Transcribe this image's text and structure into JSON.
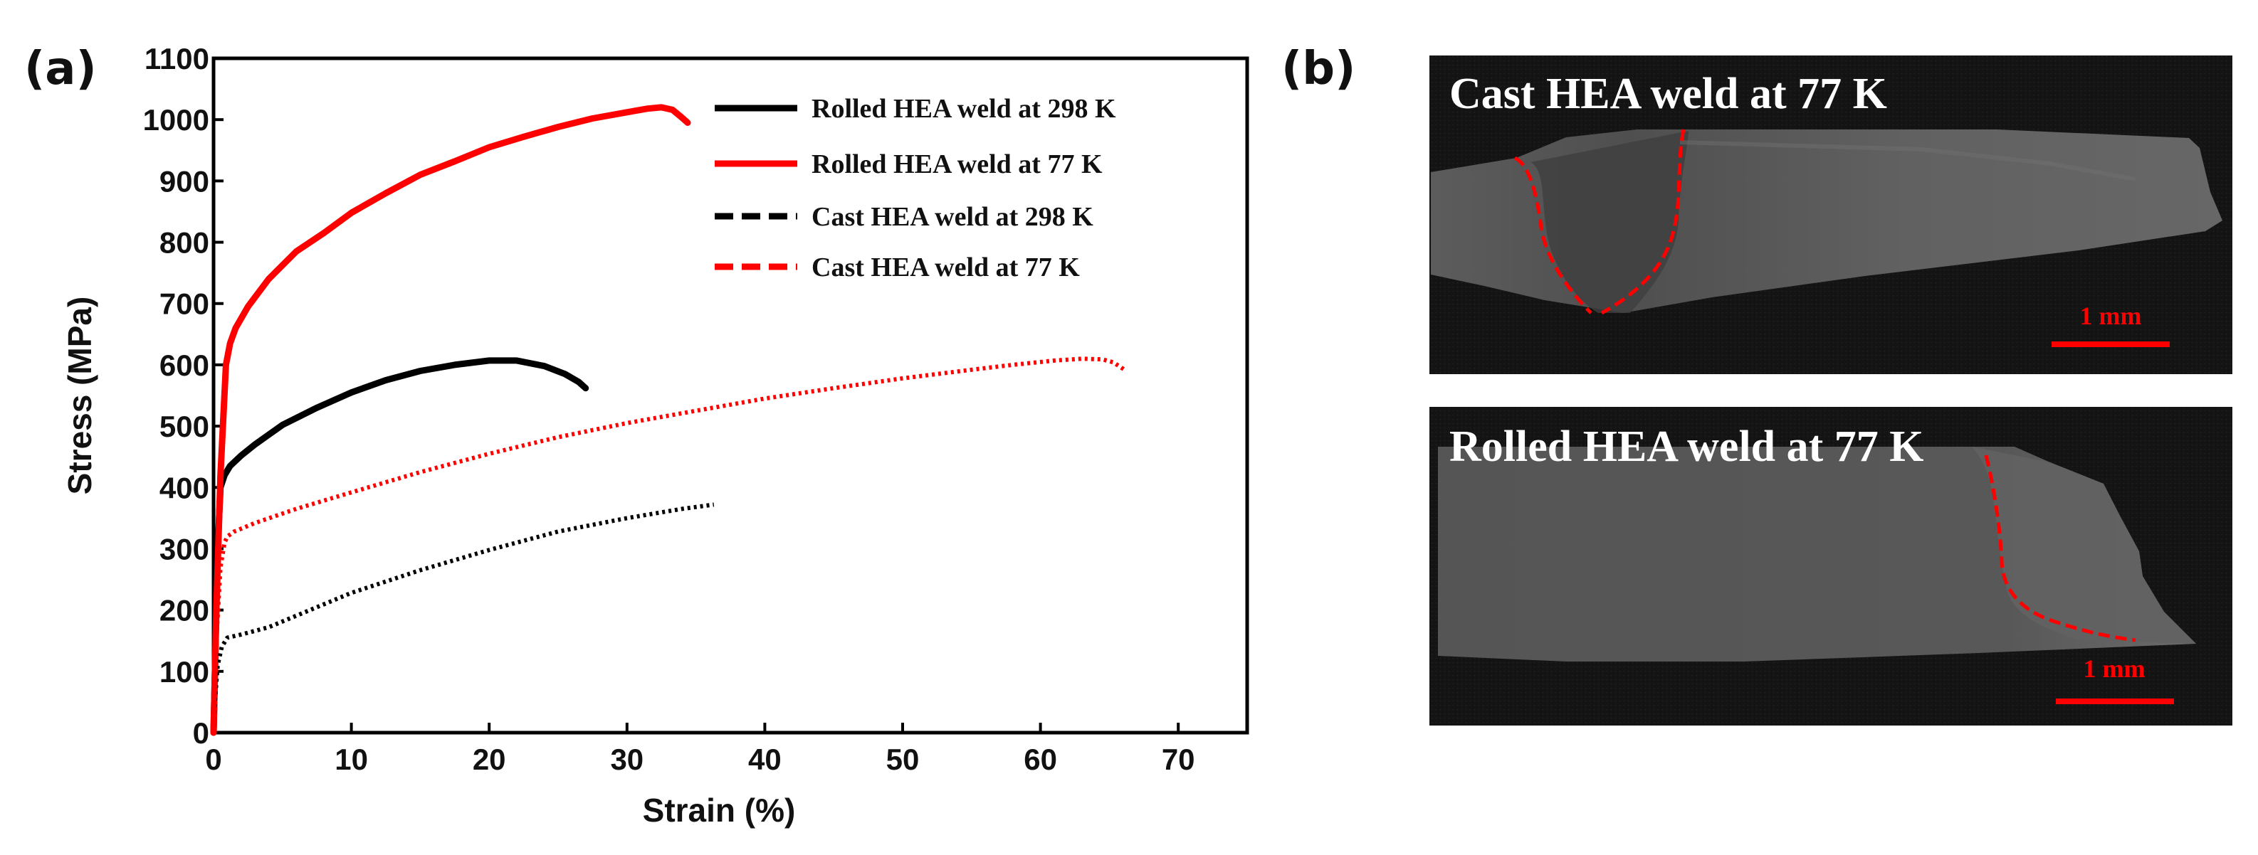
{
  "panel_a_label": "(a)",
  "panel_b_label": "(b)",
  "chart_data": {
    "type": "line",
    "title": "",
    "xlabel": "Strain (%)",
    "ylabel": "Stress (MPa)",
    "xlim": [
      0,
      75
    ],
    "ylim": [
      0,
      1100
    ],
    "xticks": [
      0,
      10,
      20,
      30,
      40,
      50,
      60,
      70
    ],
    "yticks": [
      0,
      100,
      200,
      300,
      400,
      500,
      600,
      700,
      800,
      900,
      1000,
      1100
    ],
    "legend_position": "top-right",
    "series": [
      {
        "name": "Rolled HEA weld at 298 K",
        "color": "#000000",
        "style": "solid",
        "x": [
          0,
          0.15,
          0.3,
          0.5,
          0.8,
          1.2,
          2,
          3,
          5,
          7.5,
          10,
          12.5,
          15,
          17.5,
          20,
          22,
          24,
          25.5,
          26.5,
          27
        ],
        "y": [
          0,
          150,
          300,
          400,
          420,
          435,
          452,
          470,
          502,
          530,
          555,
          575,
          590,
          600,
          607,
          607,
          598,
          585,
          572,
          562
        ]
      },
      {
        "name": "Rolled HEA weld at 77 K",
        "color": "#ff0000",
        "style": "solid",
        "x": [
          0,
          0.2,
          0.5,
          0.9,
          1.2,
          1.6,
          2.5,
          4,
          6,
          8,
          10,
          12.5,
          15,
          17.5,
          20,
          22.5,
          25,
          27.5,
          30,
          31.5,
          32.5,
          33.3,
          33.9,
          34.4
        ],
        "y": [
          0,
          200,
          420,
          600,
          635,
          660,
          695,
          740,
          785,
          815,
          848,
          880,
          910,
          932,
          955,
          972,
          988,
          1002,
          1012,
          1018,
          1020,
          1016,
          1005,
          995
        ]
      },
      {
        "name": "Cast HEA weld at 298 K",
        "color": "#000000",
        "style": "dashed",
        "x": [
          0,
          0.1,
          0.3,
          0.6,
          1,
          2,
          4,
          7,
          10,
          15,
          20,
          25,
          30,
          34,
          36.3
        ],
        "y": [
          0,
          50,
          110,
          140,
          155,
          160,
          172,
          200,
          228,
          265,
          298,
          328,
          350,
          365,
          372
        ]
      },
      {
        "name": "Cast HEA weld at 77 K",
        "color": "#ff0000",
        "style": "dashed",
        "x": [
          0,
          0.2,
          0.5,
          0.8,
          1,
          1.5,
          3,
          6,
          10,
          15,
          20,
          25,
          30,
          35,
          40,
          45,
          50,
          55,
          58,
          61,
          63,
          64.5,
          65.3,
          66.1
        ],
        "y": [
          0,
          150,
          270,
          310,
          320,
          328,
          342,
          365,
          392,
          425,
          455,
          482,
          505,
          525,
          545,
          562,
          578,
          592,
          600,
          607,
          610,
          609,
          604,
          592
        ]
      }
    ]
  },
  "micrographs": [
    {
      "title": "Cast HEA weld at 77 K",
      "scale_bar": "1 mm"
    },
    {
      "title": "Rolled HEA weld at 77 K",
      "scale_bar": "1 mm"
    }
  ],
  "colors": {
    "red": "#ff0000",
    "black": "#000000",
    "sample_gray": "#5a5a5a",
    "micrograph_background": "#151515"
  }
}
